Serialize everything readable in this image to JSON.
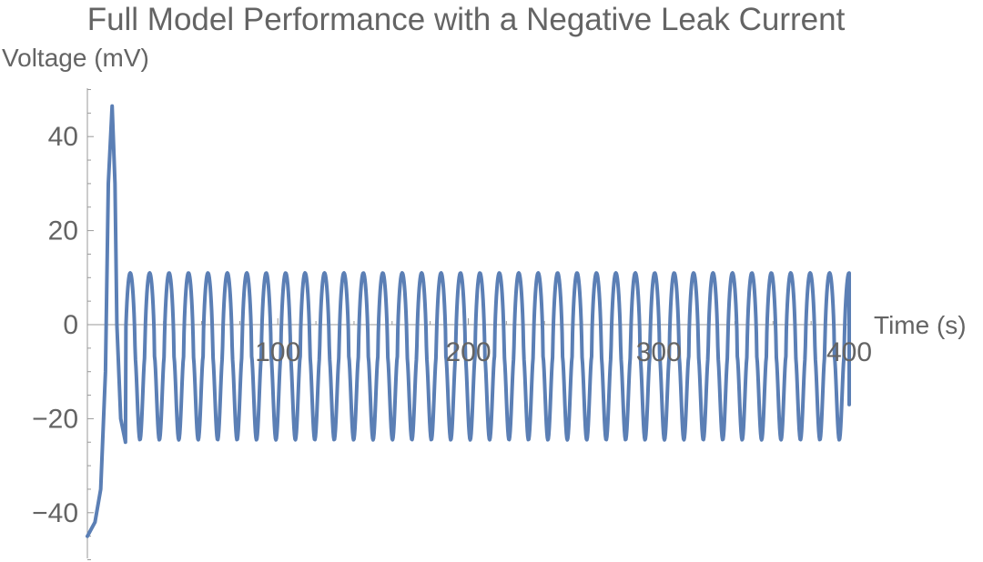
{
  "chart_data": {
    "type": "line",
    "title": "Full Model Performance with a Negative Leak Current",
    "xlabel": "Time (s)",
    "ylabel": "Voltage (mV)",
    "xlim": [
      0,
      400
    ],
    "ylim": [
      -50,
      50
    ],
    "x_ticks": [
      100,
      200,
      300,
      400
    ],
    "x_tick_labels": [
      "100",
      "200",
      "300",
      "400"
    ],
    "y_ticks": [
      -40,
      -20,
      0,
      20,
      40
    ],
    "y_tick_labels": [
      "−40",
      "−20",
      "0",
      "20",
      "40"
    ],
    "grid": false,
    "legend": "none",
    "series": [
      {
        "color": "#5b7fb5",
        "initial_spike": {
          "x": [
            0,
            4,
            7,
            9.5,
            11,
            13,
            14.5,
            15.5,
            17.5,
            20
          ],
          "y": [
            -45,
            -42,
            -35,
            -10,
            30,
            46.5,
            30,
            0,
            -20,
            -25
          ]
        },
        "oscillation": {
          "x_start": 20,
          "x_end": 400,
          "period": 10.2,
          "first_peak_x": 22.5,
          "peak": 11,
          "trough": -24.5
        },
        "final_point": {
          "x": 400,
          "y": -17
        }
      }
    ]
  },
  "colors": {
    "line": "#5b7fb5",
    "axis": "#9a9a9a",
    "text": "#646464"
  }
}
